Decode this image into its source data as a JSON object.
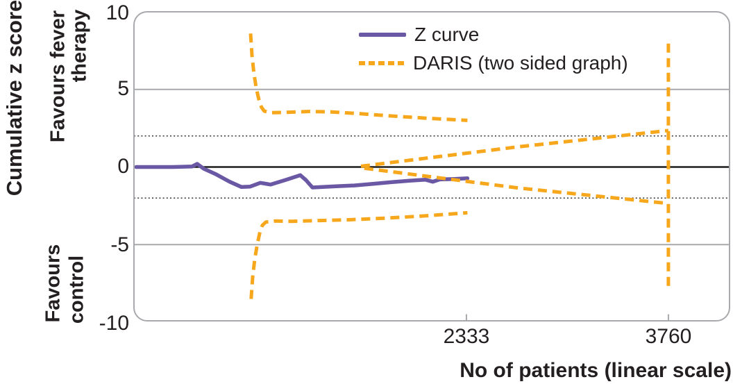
{
  "figure": {
    "y_axis_title": "Cumulative z score",
    "y_region_top": [
      "Favours fever",
      "therapy"
    ],
    "y_region_bottom": [
      "Favours",
      "control"
    ],
    "x_axis_title": "No of patients (linear scale)"
  },
  "legend": [
    {
      "label": "Z curve",
      "swatch": "solid-purple-line"
    },
    {
      "label": "DARIS (two sided graph)",
      "swatch": "dashed-orange-line"
    }
  ],
  "colors": {
    "z_curve": "#6a58a5",
    "daris": "#f7a71c",
    "grid_gray": "#a7a9ac",
    "zero_line": "#1d1d1b",
    "text": "#231f20"
  },
  "chart_data": {
    "type": "line",
    "title": "",
    "xlabel": "No of patients (linear scale)",
    "ylabel": "Cumulative z score",
    "xlim": [
      0,
      4210
    ],
    "ylim": [
      -10,
      10
    ],
    "grid": "horizontal-reference-lines-only",
    "legend_position": "top-center-inside",
    "xticks": [
      {
        "value": 2333,
        "label": "2333"
      },
      {
        "value": 3760,
        "label": "3760"
      }
    ],
    "yticks": [
      {
        "value": 10,
        "label": "10"
      },
      {
        "value": 5,
        "label": "5"
      },
      {
        "value": 0,
        "label": "0"
      },
      {
        "value": -5,
        "label": "-5"
      },
      {
        "value": -10,
        "label": "-10"
      }
    ],
    "reference_lines": [
      {
        "z": 5,
        "style": "solid",
        "color": "gray"
      },
      {
        "z": 2,
        "style": "dotted",
        "color": "black"
      },
      {
        "z": 0,
        "style": "solid",
        "color": "black"
      },
      {
        "z": -2,
        "style": "dotted",
        "color": "black"
      },
      {
        "z": -5,
        "style": "solid",
        "color": "gray"
      }
    ],
    "series": [
      {
        "name": "Z curve",
        "style": "solid",
        "color": "#6a58a5",
        "points": [
          [
            0,
            0
          ],
          [
            250,
            0
          ],
          [
            395,
            0.03
          ],
          [
            431,
            0.2
          ],
          [
            475,
            -0.1
          ],
          [
            560,
            -0.45
          ],
          [
            660,
            -0.95
          ],
          [
            744,
            -1.29
          ],
          [
            805,
            -1.26
          ],
          [
            877,
            -1.02
          ],
          [
            950,
            -1.13
          ],
          [
            1050,
            -0.85
          ],
          [
            1160,
            -0.53
          ],
          [
            1200,
            -0.85
          ],
          [
            1245,
            -1.32
          ],
          [
            1400,
            -1.25
          ],
          [
            1540,
            -1.19
          ],
          [
            1680,
            -1.08
          ],
          [
            1800,
            -0.98
          ],
          [
            1930,
            -0.88
          ],
          [
            2044,
            -0.82
          ],
          [
            2095,
            -0.95
          ],
          [
            2145,
            -0.8
          ],
          [
            2250,
            -0.77
          ],
          [
            2340,
            -0.73
          ]
        ]
      },
      {
        "name": "DARIS (two sided graph)",
        "style": "dashed",
        "color": "#f7a71c",
        "segments": [
          [
            [
              808,
              8.6
            ],
            [
              818,
              7.2
            ],
            [
              832,
              6.0
            ],
            [
              850,
              5.0
            ],
            [
              868,
              4.3
            ],
            [
              885,
              3.85
            ],
            [
              905,
              3.6
            ],
            [
              955,
              3.5
            ],
            [
              1060,
              3.52
            ],
            [
              1220,
              3.58
            ],
            [
              1380,
              3.55
            ],
            [
              1560,
              3.45
            ],
            [
              1780,
              3.3
            ],
            [
              2040,
              3.15
            ],
            [
              2340,
              3.0
            ]
          ],
          [
            [
              812,
              -8.5
            ],
            [
              823,
              -7.1
            ],
            [
              838,
              -5.9
            ],
            [
              856,
              -4.95
            ],
            [
              874,
              -4.2
            ],
            [
              892,
              -3.75
            ],
            [
              916,
              -3.55
            ],
            [
              980,
              -3.48
            ],
            [
              1100,
              -3.5
            ],
            [
              1294,
              -3.45
            ],
            [
              1500,
              -3.4
            ],
            [
              1750,
              -3.3
            ],
            [
              2040,
              -3.15
            ],
            [
              2340,
              -2.95
            ]
          ],
          [
            [
              1588,
              0.05
            ],
            [
              2700,
              1.3
            ],
            [
              3760,
              2.35
            ]
          ],
          [
            [
              1612,
              -0.08
            ],
            [
              2700,
              -1.35
            ],
            [
              3760,
              -2.35
            ]
          ],
          [
            [
              3760,
              7.95
            ],
            [
              3760,
              -7.9
            ]
          ]
        ]
      }
    ]
  }
}
